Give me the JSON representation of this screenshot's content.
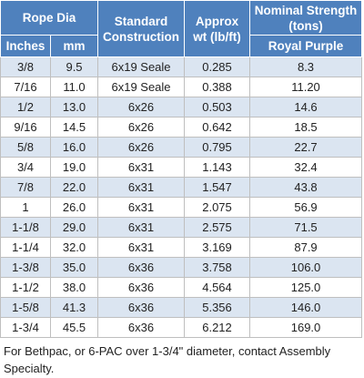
{
  "table": {
    "header": [
      [
        [
          "Rope Dia"
        ],
        [
          "Standard",
          "Construction"
        ],
        [
          "Approx",
          "wt (lb/ft)"
        ],
        [
          "Nominal Strength",
          "(tons)"
        ]
      ],
      [
        [
          "Inches"
        ],
        [
          "mm"
        ],
        [
          "Royal Purple"
        ]
      ]
    ],
    "rows": [
      [
        "3/8",
        "9.5",
        "6x19 Seale",
        "0.285",
        "8.3"
      ],
      [
        "7/16",
        "11.0",
        "6x19 Seale",
        "0.388",
        "11.20"
      ],
      [
        "1/2",
        "13.0",
        "6x26",
        "0.503",
        "14.6"
      ],
      [
        "9/16",
        "14.5",
        "6x26",
        "0.642",
        "18.5"
      ],
      [
        "5/8",
        "16.0",
        "6x26",
        "0.795",
        "22.7"
      ],
      [
        "3/4",
        "19.0",
        "6x31",
        "1.143",
        "32.4"
      ],
      [
        "7/8",
        "22.0",
        "6x31",
        "1.547",
        "43.8"
      ],
      [
        "1",
        "26.0",
        "6x31",
        "2.075",
        "56.9"
      ],
      [
        "1-1/8",
        "29.0",
        "6x31",
        "2.575",
        "71.5"
      ],
      [
        "1-1/4",
        "32.0",
        "6x31",
        "3.169",
        "87.9"
      ],
      [
        "1-3/8",
        "35.0",
        "6x36",
        "3.758",
        "106.0"
      ],
      [
        "1-1/2",
        "38.0",
        "6x36",
        "4.564",
        "125.0"
      ],
      [
        "1-5/8",
        "41.3",
        "6x36",
        "5.356",
        "146.0"
      ],
      [
        "1-3/4",
        "45.5",
        "6x36",
        "6.212",
        "169.0"
      ]
    ]
  },
  "footnote": "For Bethpac, or 6-PAC over 1-3/4\" diameter, contact Assembly Specialty."
}
